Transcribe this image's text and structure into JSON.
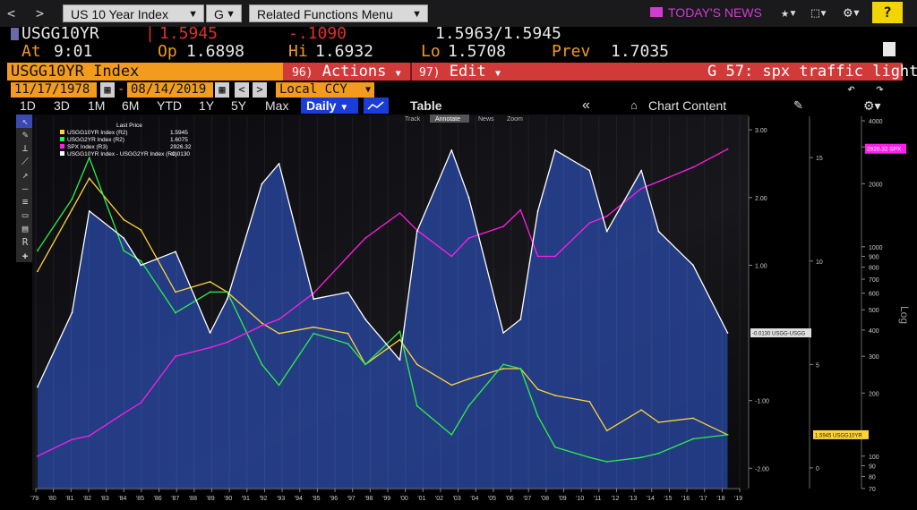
{
  "topbar": {
    "back": "<",
    "forward": ">",
    "security_menu": "US 10 Year Index",
    "g_menu": "G",
    "related_menu": "Related Functions Menu",
    "news": "TODAY'S NEWS",
    "help": "?"
  },
  "quote": {
    "ticker": "USGG10YR",
    "last": "1.5945",
    "change": "-.1090",
    "bid_ask": "1.5963/1.5945",
    "at_label": "At",
    "at_time": "9:01",
    "op_label": "Op",
    "op": "1.6898",
    "hi_label": "Hi",
    "hi": "1.6932",
    "lo_label": "Lo",
    "lo": "1.5708",
    "prev_label": "Prev",
    "prev": "1.7035"
  },
  "commandbar": {
    "index": "USGG10YR Index",
    "actions_num": "96)",
    "actions": "Actions",
    "edit_num": "97)",
    "edit": "Edit",
    "function": "G 57: spx traffic light"
  },
  "daterange": {
    "start": "11/17/1978",
    "end": "08/14/2019",
    "currency": "Local CCY"
  },
  "toolbar": {
    "periods": [
      "1D",
      "3D",
      "1M",
      "6M",
      "YTD",
      "1Y",
      "5Y",
      "Max"
    ],
    "frequency": "Daily",
    "table": "Table",
    "chart_content": "Chart Content",
    "mini": [
      "Track",
      "Annotate",
      "News",
      "Zoom"
    ]
  },
  "legend": {
    "header": "Last Price",
    "items": [
      {
        "name": "USGG10YR Index (R2)",
        "value": "1.5945",
        "color": "#ffd23a"
      },
      {
        "name": "USGG2YR Index (R2)",
        "value": "1.6075",
        "color": "#2cf04a"
      },
      {
        "name": "SPX Index (R3)",
        "value": "2926.32",
        "color": "#ff1ee8"
      },
      {
        "name": "USGG10YR Index - USGG2YR Index (R1)",
        "value": "-0.0130",
        "color": "#ffffff"
      }
    ]
  },
  "colors": {
    "ten_year": "#ffd23a",
    "two_year": "#2cf04a",
    "spx": "#ff1ee8",
    "spread": "#ffffff",
    "area_fill": "#2a4aa8",
    "background": "#000000"
  },
  "chart_data": {
    "type": "line",
    "x": [
      "1979",
      "1981",
      "1982",
      "1984",
      "1985",
      "1987",
      "1989",
      "1990",
      "1992",
      "1993",
      "1995",
      "1997",
      "1998",
      "2000",
      "2001",
      "2003",
      "2004",
      "2006",
      "2007",
      "2008",
      "2009",
      "2011",
      "2012",
      "2014",
      "2015",
      "2017",
      "2019"
    ],
    "x_tick_labels": [
      "'79",
      "'80",
      "'81",
      "'82",
      "'83",
      "'84",
      "'85",
      "'86",
      "'87",
      "'88",
      "'89",
      "'90",
      "'91",
      "'92",
      "'93",
      "'94",
      "'95",
      "'96",
      "'97",
      "'98",
      "'99",
      "'00",
      "'01",
      "'02",
      "'03",
      "'04",
      "'05",
      "'06",
      "'07",
      "'08",
      "'09",
      "'10",
      "'11",
      "'12",
      "'13",
      "'14",
      "'15",
      "'16",
      "'17",
      "'18",
      "'19"
    ],
    "series": [
      {
        "name": "USGG10YR Index - USGG2YR Index (R1)",
        "axis": "R1",
        "values": [
          -0.8,
          0.3,
          1.8,
          1.4,
          1.0,
          1.2,
          0.0,
          0.5,
          2.2,
          2.5,
          0.5,
          0.6,
          0.2,
          -0.4,
          1.5,
          2.7,
          2.0,
          0.0,
          0.2,
          1.8,
          2.7,
          2.4,
          1.5,
          2.4,
          1.5,
          1.0,
          0.0
        ]
      },
      {
        "name": "USGG10YR Index (R2)",
        "axis": "R2",
        "values": [
          9.5,
          12.5,
          14.0,
          12.0,
          11.5,
          8.5,
          9.0,
          8.5,
          7.0,
          6.5,
          6.8,
          6.5,
          5.0,
          6.2,
          5.0,
          4.0,
          4.3,
          4.8,
          4.8,
          3.8,
          3.5,
          3.2,
          1.8,
          2.8,
          2.2,
          2.4,
          1.6
        ]
      },
      {
        "name": "USGG2YR Index (R2)",
        "axis": "R2",
        "values": [
          10.5,
          13.0,
          15.0,
          10.5,
          10.0,
          7.5,
          8.5,
          8.5,
          5.0,
          4.0,
          6.5,
          6.0,
          5.0,
          6.6,
          3.0,
          1.6,
          3.0,
          5.0,
          4.8,
          2.5,
          1.0,
          0.5,
          0.3,
          0.5,
          0.7,
          1.4,
          1.6
        ]
      },
      {
        "name": "SPX Index (R3)",
        "axis": "R3",
        "values": [
          100,
          120,
          125,
          160,
          180,
          300,
          330,
          350,
          420,
          450,
          600,
          900,
          1100,
          1450,
          1200,
          900,
          1100,
          1250,
          1500,
          900,
          900,
          1300,
          1400,
          1900,
          2050,
          2400,
          2926
        ]
      }
    ],
    "axes": {
      "R1": {
        "ylim": [
          -2.3,
          3.2
        ],
        "ticks": [
          "3.00",
          "2.00",
          "1.00",
          "-1.00",
          "-2.00"
        ]
      },
      "R2": {
        "ylim": [
          -1,
          17
        ],
        "ticks": [
          "15",
          "10",
          "5",
          "0"
        ]
      },
      "R3": {
        "scale": "log",
        "ylim": [
          70,
          4200
        ],
        "label": "Log",
        "ticks": [
          "4000",
          "3000",
          "2000",
          "1000",
          "900",
          "800",
          "700",
          "600",
          "500",
          "400",
          "300",
          "200",
          "100",
          "90",
          "80",
          "70"
        ]
      }
    },
    "end_labels": {
      "spx": "2926.32 SPX",
      "spread": "-0.0130 USGG-USGG",
      "ten_year": "1.5945 USGG10YR"
    }
  }
}
